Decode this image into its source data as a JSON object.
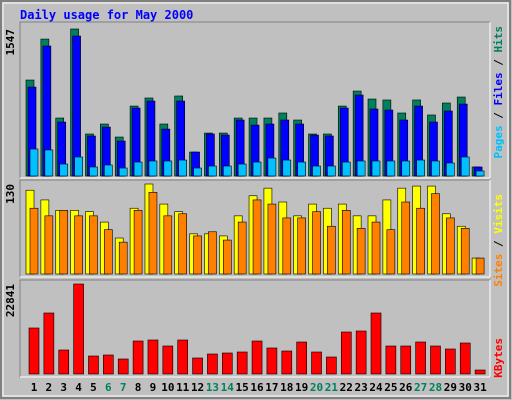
{
  "chart_data": [
    {
      "type": "bar",
      "title": "Daily usage for May 2000",
      "legend_separator": " / ",
      "ylim": [
        0,
        1547
      ],
      "yticks": [
        1547
      ],
      "series": [
        {
          "name": "Hits",
          "color": "#00805c",
          "values": [
            1010,
            1441,
            610,
            1547,
            442,
            547,
            410,
            736,
            821,
            547,
            842,
            252,
            452,
            452,
            610,
            610,
            610,
            663,
            589,
            442,
            442,
            736,
            894,
            810,
            800,
            663,
            800,
            642,
            768,
            831,
            95
          ]
        },
        {
          "name": "Files",
          "color": "#0000ff",
          "values": [
            936,
            1368,
            568,
            1473,
            421,
            515,
            368,
            715,
            789,
            494,
            789,
            252,
            442,
            431,
            589,
            536,
            547,
            589,
            547,
            431,
            421,
            715,
            852,
            705,
            694,
            589,
            736,
            568,
            684,
            757,
            95
          ]
        },
        {
          "name": "Pages",
          "color": "#00c0ff",
          "values": [
            284,
            274,
            126,
            200,
            95,
            116,
            84,
            147,
            158,
            158,
            168,
            84,
            105,
            105,
            126,
            147,
            189,
            168,
            147,
            105,
            105,
            147,
            158,
            158,
            158,
            158,
            168,
            158,
            137,
            200,
            53
          ]
        }
      ]
    },
    {
      "type": "bar",
      "legend_separator": " / ",
      "ylim": [
        0,
        130
      ],
      "yticks": [
        130
      ],
      "series": [
        {
          "name": "Visits",
          "color": "#ffff00",
          "values": [
            121,
            107,
            92,
            92,
            90,
            75,
            52,
            95,
            130,
            101,
            90,
            58,
            58,
            55,
            84,
            113,
            124,
            104,
            84,
            101,
            95,
            101,
            84,
            84,
            107,
            124,
            127,
            127,
            87,
            69,
            23
          ]
        },
        {
          "name": "Sites",
          "color": "#ff8000",
          "values": [
            95,
            84,
            92,
            84,
            84,
            64,
            46,
            92,
            118,
            84,
            87,
            55,
            61,
            49,
            75,
            107,
            101,
            81,
            81,
            90,
            69,
            92,
            66,
            75,
            64,
            104,
            95,
            116,
            81,
            66,
            23
          ]
        }
      ]
    },
    {
      "type": "bar",
      "ylim": [
        0,
        22841
      ],
      "yticks": [
        22841
      ],
      "categories": [
        "1",
        "2",
        "3",
        "4",
        "5",
        "6",
        "7",
        "8",
        "9",
        "10",
        "11",
        "12",
        "13",
        "14",
        "15",
        "16",
        "17",
        "18",
        "19",
        "20",
        "21",
        "22",
        "23",
        "24",
        "25",
        "26",
        "27",
        "28",
        "29",
        "30",
        "31"
      ],
      "highlight_indices": [
        5,
        6,
        12,
        13,
        19,
        20,
        26,
        27
      ],
      "highlight_color": "#00805c",
      "series": [
        {
          "name": "KBytes",
          "color": "#ff0000",
          "values": [
            11675,
            15482,
            6091,
            22841,
            4568,
            4822,
            3807,
            8375,
            8629,
            7106,
            8629,
            4060,
            5076,
            5330,
            5584,
            8375,
            6599,
            5837,
            8122,
            5584,
            4314,
            10659,
            10913,
            15482,
            7106,
            7106,
            8122,
            7106,
            6345,
            7868,
            1015
          ]
        }
      ]
    }
  ]
}
